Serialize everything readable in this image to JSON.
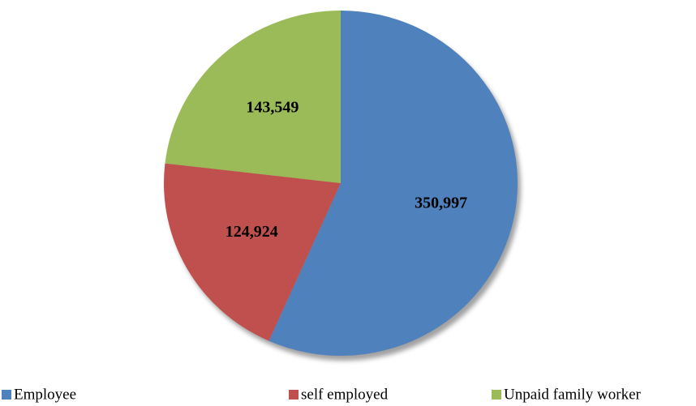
{
  "chart_data": {
    "type": "pie",
    "categories": [
      "Employee",
      "self employed",
      "Unpaid family worker"
    ],
    "values": [
      350997,
      124924,
      143549
    ],
    "value_labels": [
      "350,997",
      "124,924",
      "143,549"
    ],
    "colors": [
      "#4f81bd",
      "#c0504d",
      "#9bbb59"
    ],
    "legend": "bottom"
  }
}
